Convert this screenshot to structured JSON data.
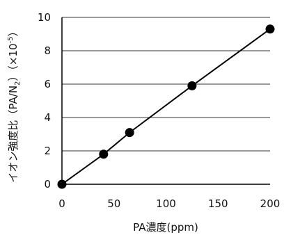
{
  "chart_data": {
    "type": "scatter",
    "xlabel": "PA濃度(ppm)",
    "ylabel_main": "イオン強度比（PA/N",
    "ylabel_sub": "2",
    "ylabel_end": "）（×10",
    "ylabel_sup": "-5",
    "ylabel_close": "）",
    "xlim": [
      0,
      200
    ],
    "ylim": [
      0,
      10
    ],
    "x_ticks": [
      0,
      50,
      100,
      150,
      200
    ],
    "y_ticks": [
      0,
      2,
      4,
      6,
      8,
      10
    ],
    "grid": "horizontal",
    "series": [
      {
        "x": [
          0,
          40,
          65,
          125,
          200
        ],
        "y": [
          0,
          1.8,
          3.1,
          5.9,
          9.3
        ],
        "marker": "circle",
        "line": true,
        "color": "#000000"
      }
    ]
  }
}
